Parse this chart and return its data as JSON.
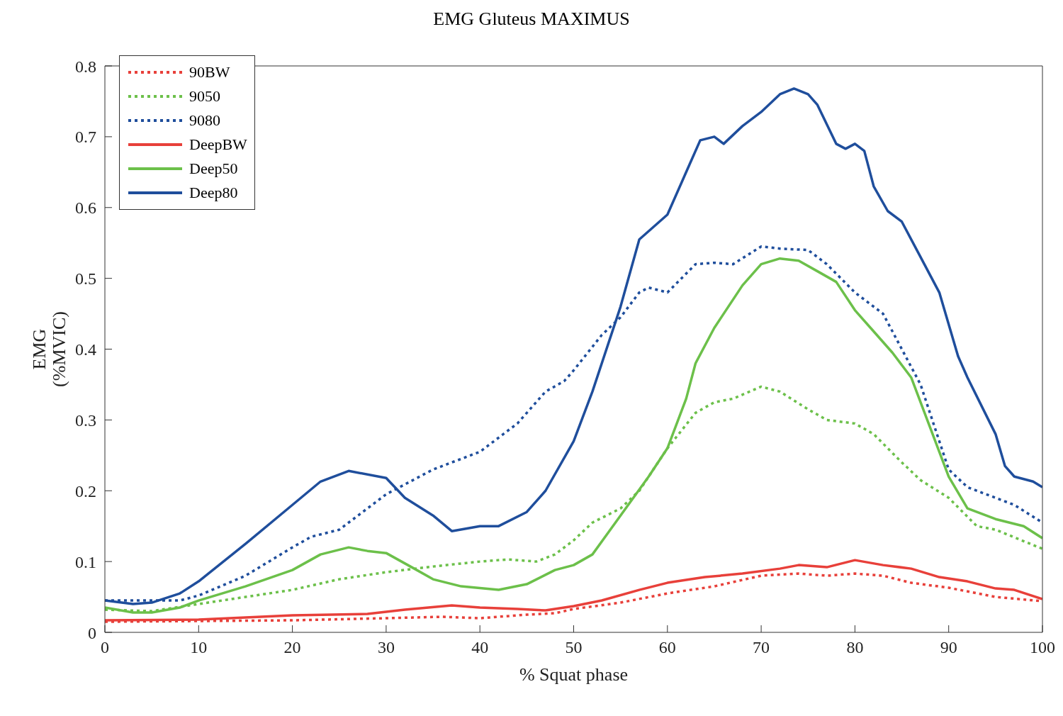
{
  "chart_data": {
    "type": "line",
    "title": "EMG Gluteus MAXIMUS",
    "xlabel": "% Squat phase",
    "ylabel": "EMG\n(%MVIC)",
    "xlim": [
      0,
      100
    ],
    "xticks": [
      0,
      10,
      20,
      30,
      40,
      50,
      60,
      70,
      80,
      90,
      100
    ],
    "ylim": [
      0,
      0.8
    ],
    "yticks": [
      0,
      0.1,
      0.2,
      0.3,
      0.4,
      0.5,
      0.6,
      0.7,
      0.8
    ],
    "grid": false,
    "legend": "top left",
    "marker": "none",
    "series": [
      {
        "name": "90BW",
        "color": "#e8403a",
        "line_style": "dotted",
        "x": [
          0,
          10,
          20,
          30,
          36,
          40,
          45,
          48,
          50,
          55,
          60,
          65,
          70,
          74,
          77,
          80,
          83,
          86,
          90,
          95,
          100
        ],
        "values": [
          0.015,
          0.016,
          0.017,
          0.02,
          0.022,
          0.02,
          0.025,
          0.027,
          0.033,
          0.042,
          0.055,
          0.065,
          0.08,
          0.083,
          0.08,
          0.083,
          0.08,
          0.07,
          0.063,
          0.05,
          0.044
        ]
      },
      {
        "name": "9050",
        "color": "#6cc04a",
        "line_style": "dotted",
        "x": [
          0,
          5,
          10,
          15,
          20,
          25,
          30,
          35,
          40,
          43,
          46,
          48,
          50,
          52,
          55,
          57,
          60,
          63,
          65,
          67,
          70,
          72,
          75,
          77,
          80,
          82,
          85,
          87,
          90,
          93,
          95,
          100
        ],
        "values": [
          0.032,
          0.03,
          0.04,
          0.05,
          0.06,
          0.075,
          0.085,
          0.093,
          0.1,
          0.103,
          0.1,
          0.11,
          0.13,
          0.155,
          0.175,
          0.2,
          0.26,
          0.31,
          0.325,
          0.33,
          0.347,
          0.34,
          0.315,
          0.3,
          0.295,
          0.28,
          0.24,
          0.215,
          0.19,
          0.15,
          0.145,
          0.118
        ]
      },
      {
        "name": "9080",
        "color": "#1f4e9c",
        "line_style": "dotted",
        "x": [
          0,
          5,
          8,
          10,
          15,
          20,
          22,
          25,
          30,
          35,
          40,
          44,
          47,
          49,
          50,
          53,
          55,
          57,
          58,
          60,
          63,
          65,
          67,
          70,
          72,
          75,
          77,
          80,
          83,
          85,
          87,
          90,
          92,
          95,
          97,
          100
        ],
        "values": [
          0.045,
          0.045,
          0.045,
          0.052,
          0.08,
          0.12,
          0.135,
          0.145,
          0.195,
          0.23,
          0.255,
          0.295,
          0.34,
          0.355,
          0.37,
          0.42,
          0.445,
          0.48,
          0.487,
          0.48,
          0.52,
          0.522,
          0.52,
          0.545,
          0.542,
          0.54,
          0.52,
          0.48,
          0.45,
          0.4,
          0.35,
          0.23,
          0.205,
          0.19,
          0.18,
          0.155
        ]
      },
      {
        "name": "DeepBW",
        "color": "#e8403a",
        "line_style": "solid",
        "x": [
          0,
          10,
          20,
          28,
          32,
          37,
          40,
          44,
          47,
          50,
          53,
          57,
          60,
          64,
          68,
          72,
          74,
          77,
          80,
          83,
          86,
          89,
          92,
          95,
          97,
          100
        ],
        "values": [
          0.017,
          0.018,
          0.024,
          0.026,
          0.032,
          0.038,
          0.035,
          0.033,
          0.031,
          0.037,
          0.045,
          0.06,
          0.07,
          0.078,
          0.083,
          0.09,
          0.095,
          0.092,
          0.102,
          0.095,
          0.09,
          0.078,
          0.072,
          0.062,
          0.06,
          0.047
        ]
      },
      {
        "name": "Deep50",
        "color": "#6cc04a",
        "line_style": "solid",
        "x": [
          0,
          3,
          5,
          8,
          10,
          15,
          20,
          23,
          26,
          28,
          30,
          33,
          35,
          38,
          42,
          45,
          48,
          50,
          52,
          55,
          58,
          60,
          62,
          63,
          65,
          68,
          70,
          72,
          74,
          76,
          78,
          80,
          82,
          84,
          86,
          88,
          90,
          92,
          95,
          98,
          100
        ],
        "values": [
          0.035,
          0.028,
          0.028,
          0.035,
          0.045,
          0.065,
          0.088,
          0.11,
          0.12,
          0.115,
          0.112,
          0.09,
          0.075,
          0.065,
          0.06,
          0.068,
          0.088,
          0.095,
          0.11,
          0.165,
          0.22,
          0.26,
          0.33,
          0.38,
          0.43,
          0.49,
          0.52,
          0.528,
          0.525,
          0.51,
          0.495,
          0.455,
          0.425,
          0.395,
          0.36,
          0.29,
          0.22,
          0.175,
          0.16,
          0.15,
          0.133
        ]
      },
      {
        "name": "Deep80",
        "color": "#1f4e9c",
        "line_style": "solid",
        "x": [
          0,
          3,
          5,
          8,
          10,
          15,
          20,
          23,
          26,
          30,
          32,
          35,
          37,
          40,
          42,
          45,
          47,
          50,
          52,
          55,
          57,
          60,
          62,
          63.5,
          65,
          66,
          68,
          70,
          72,
          73.5,
          75,
          76,
          78,
          79,
          80,
          81,
          82,
          83.5,
          85,
          87,
          89,
          91,
          92,
          95,
          96,
          97,
          99,
          100
        ],
        "values": [
          0.045,
          0.04,
          0.042,
          0.055,
          0.072,
          0.125,
          0.18,
          0.213,
          0.228,
          0.218,
          0.19,
          0.165,
          0.143,
          0.15,
          0.15,
          0.17,
          0.2,
          0.27,
          0.34,
          0.46,
          0.555,
          0.59,
          0.65,
          0.695,
          0.7,
          0.69,
          0.715,
          0.735,
          0.76,
          0.768,
          0.76,
          0.745,
          0.69,
          0.683,
          0.69,
          0.68,
          0.63,
          0.595,
          0.58,
          0.53,
          0.48,
          0.39,
          0.36,
          0.28,
          0.235,
          0.22,
          0.213,
          0.205
        ]
      }
    ]
  }
}
